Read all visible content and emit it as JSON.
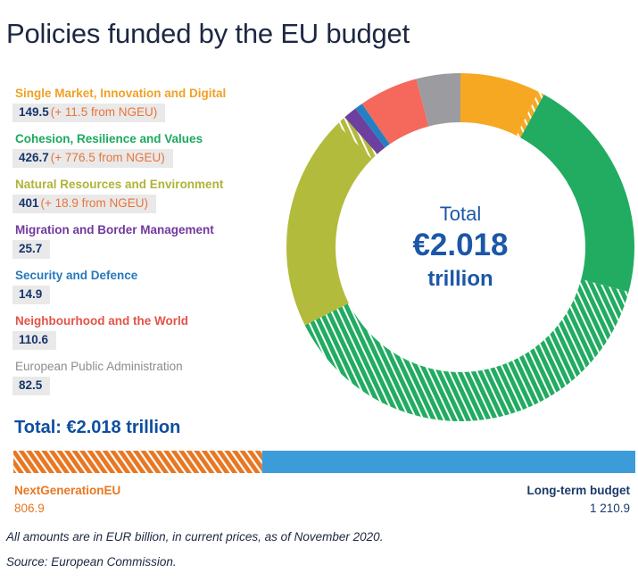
{
  "title": "Policies funded by the EU budget",
  "legend": {
    "items": [
      {
        "label": "Single Market, Innovation and Digital",
        "value": "149.5",
        "ngeu": "(+ 11.5 from NGEU)",
        "color": "#f0a125",
        "muted": false
      },
      {
        "label": "Cohesion, Resilience and Values",
        "value": "426.7",
        "ngeu": "(+ 776.5 from NGEU)",
        "color": "#1ca95f",
        "muted": false
      },
      {
        "label": "Natural Resources and Environment",
        "value": "401",
        "ngeu": "(+ 18.9 from NGEU)",
        "color": "#aeb437",
        "muted": false
      },
      {
        "label": "Migration and Border Management",
        "value": "25.7",
        "ngeu": "",
        "color": "#71399f",
        "muted": false
      },
      {
        "label": "Security and Defence",
        "value": "14.9",
        "ngeu": "",
        "color": "#2679bc",
        "muted": false
      },
      {
        "label": "Neighbourhood and the World",
        "value": "110.6",
        "ngeu": "",
        "color": "#e25349",
        "muted": false
      },
      {
        "label": "European Public Administration",
        "value": "82.5",
        "ngeu": "",
        "color": "#8d8d91",
        "muted": true
      }
    ]
  },
  "donut": {
    "center_label": "Total",
    "center_value": "€2.018",
    "center_unit": "trillion",
    "text_color": "#1c57a8"
  },
  "total_heading": "Total: €2.018 trillion",
  "bar_labels": {
    "left_label": "NextGenerationEU",
    "left_value": "806.9",
    "right_label": "Long-term budget",
    "right_value": "1 210.9"
  },
  "footnote": "All amounts are in EUR billion, in current prices, as of November 2020.",
  "source": "Source: European Commission.",
  "chart_data": {
    "type": "donut",
    "title": "Policies funded by the EU budget",
    "units": "EUR billion, current prices, as of November 2020",
    "total_label": "Total €2.018 trillion",
    "total_value": 2017.8,
    "start_angle_deg": 0,
    "direction": "clockwise",
    "inner_radius_ratio": 0.715,
    "segments": [
      {
        "name": "Single Market, Innovation and Digital (MFF)",
        "value": 149.5,
        "color": "#f6a822",
        "hatched": false
      },
      {
        "name": "Single Market, Innovation and Digital (NGEU)",
        "value": 11.5,
        "color": "#f6a822",
        "hatched": true
      },
      {
        "name": "Cohesion, Resilience and Values (MFF)",
        "value": 426.7,
        "color": "#21ac61",
        "hatched": false
      },
      {
        "name": "Cohesion, Resilience and Values (NGEU)",
        "value": 776.5,
        "color": "#21ac61",
        "hatched": true
      },
      {
        "name": "Natural Resources and Environment (MFF)",
        "value": 401,
        "color": "#b2bb3b",
        "hatched": false
      },
      {
        "name": "Natural Resources and Environment (NGEU)",
        "value": 18.9,
        "color": "#b2bb3b",
        "hatched": true
      },
      {
        "name": "Migration and Border Management",
        "value": 25.7,
        "color": "#6d3f9e",
        "hatched": false
      },
      {
        "name": "Security and Defence",
        "value": 14.9,
        "color": "#2580c3",
        "hatched": false
      },
      {
        "name": "Neighbourhood and the World",
        "value": 110.6,
        "color": "#f4695c",
        "hatched": false
      },
      {
        "name": "European Public Administration",
        "value": 82.5,
        "color": "#9c9ca0",
        "hatched": false
      }
    ],
    "bar": {
      "type": "stacked-bar",
      "segments": [
        {
          "name": "NextGenerationEU",
          "value": 806.9,
          "color": "#e87722",
          "hatched": true
        },
        {
          "name": "Long-term budget",
          "value": 1210.9,
          "color": "#3b9cd9",
          "hatched": false
        }
      ]
    }
  }
}
